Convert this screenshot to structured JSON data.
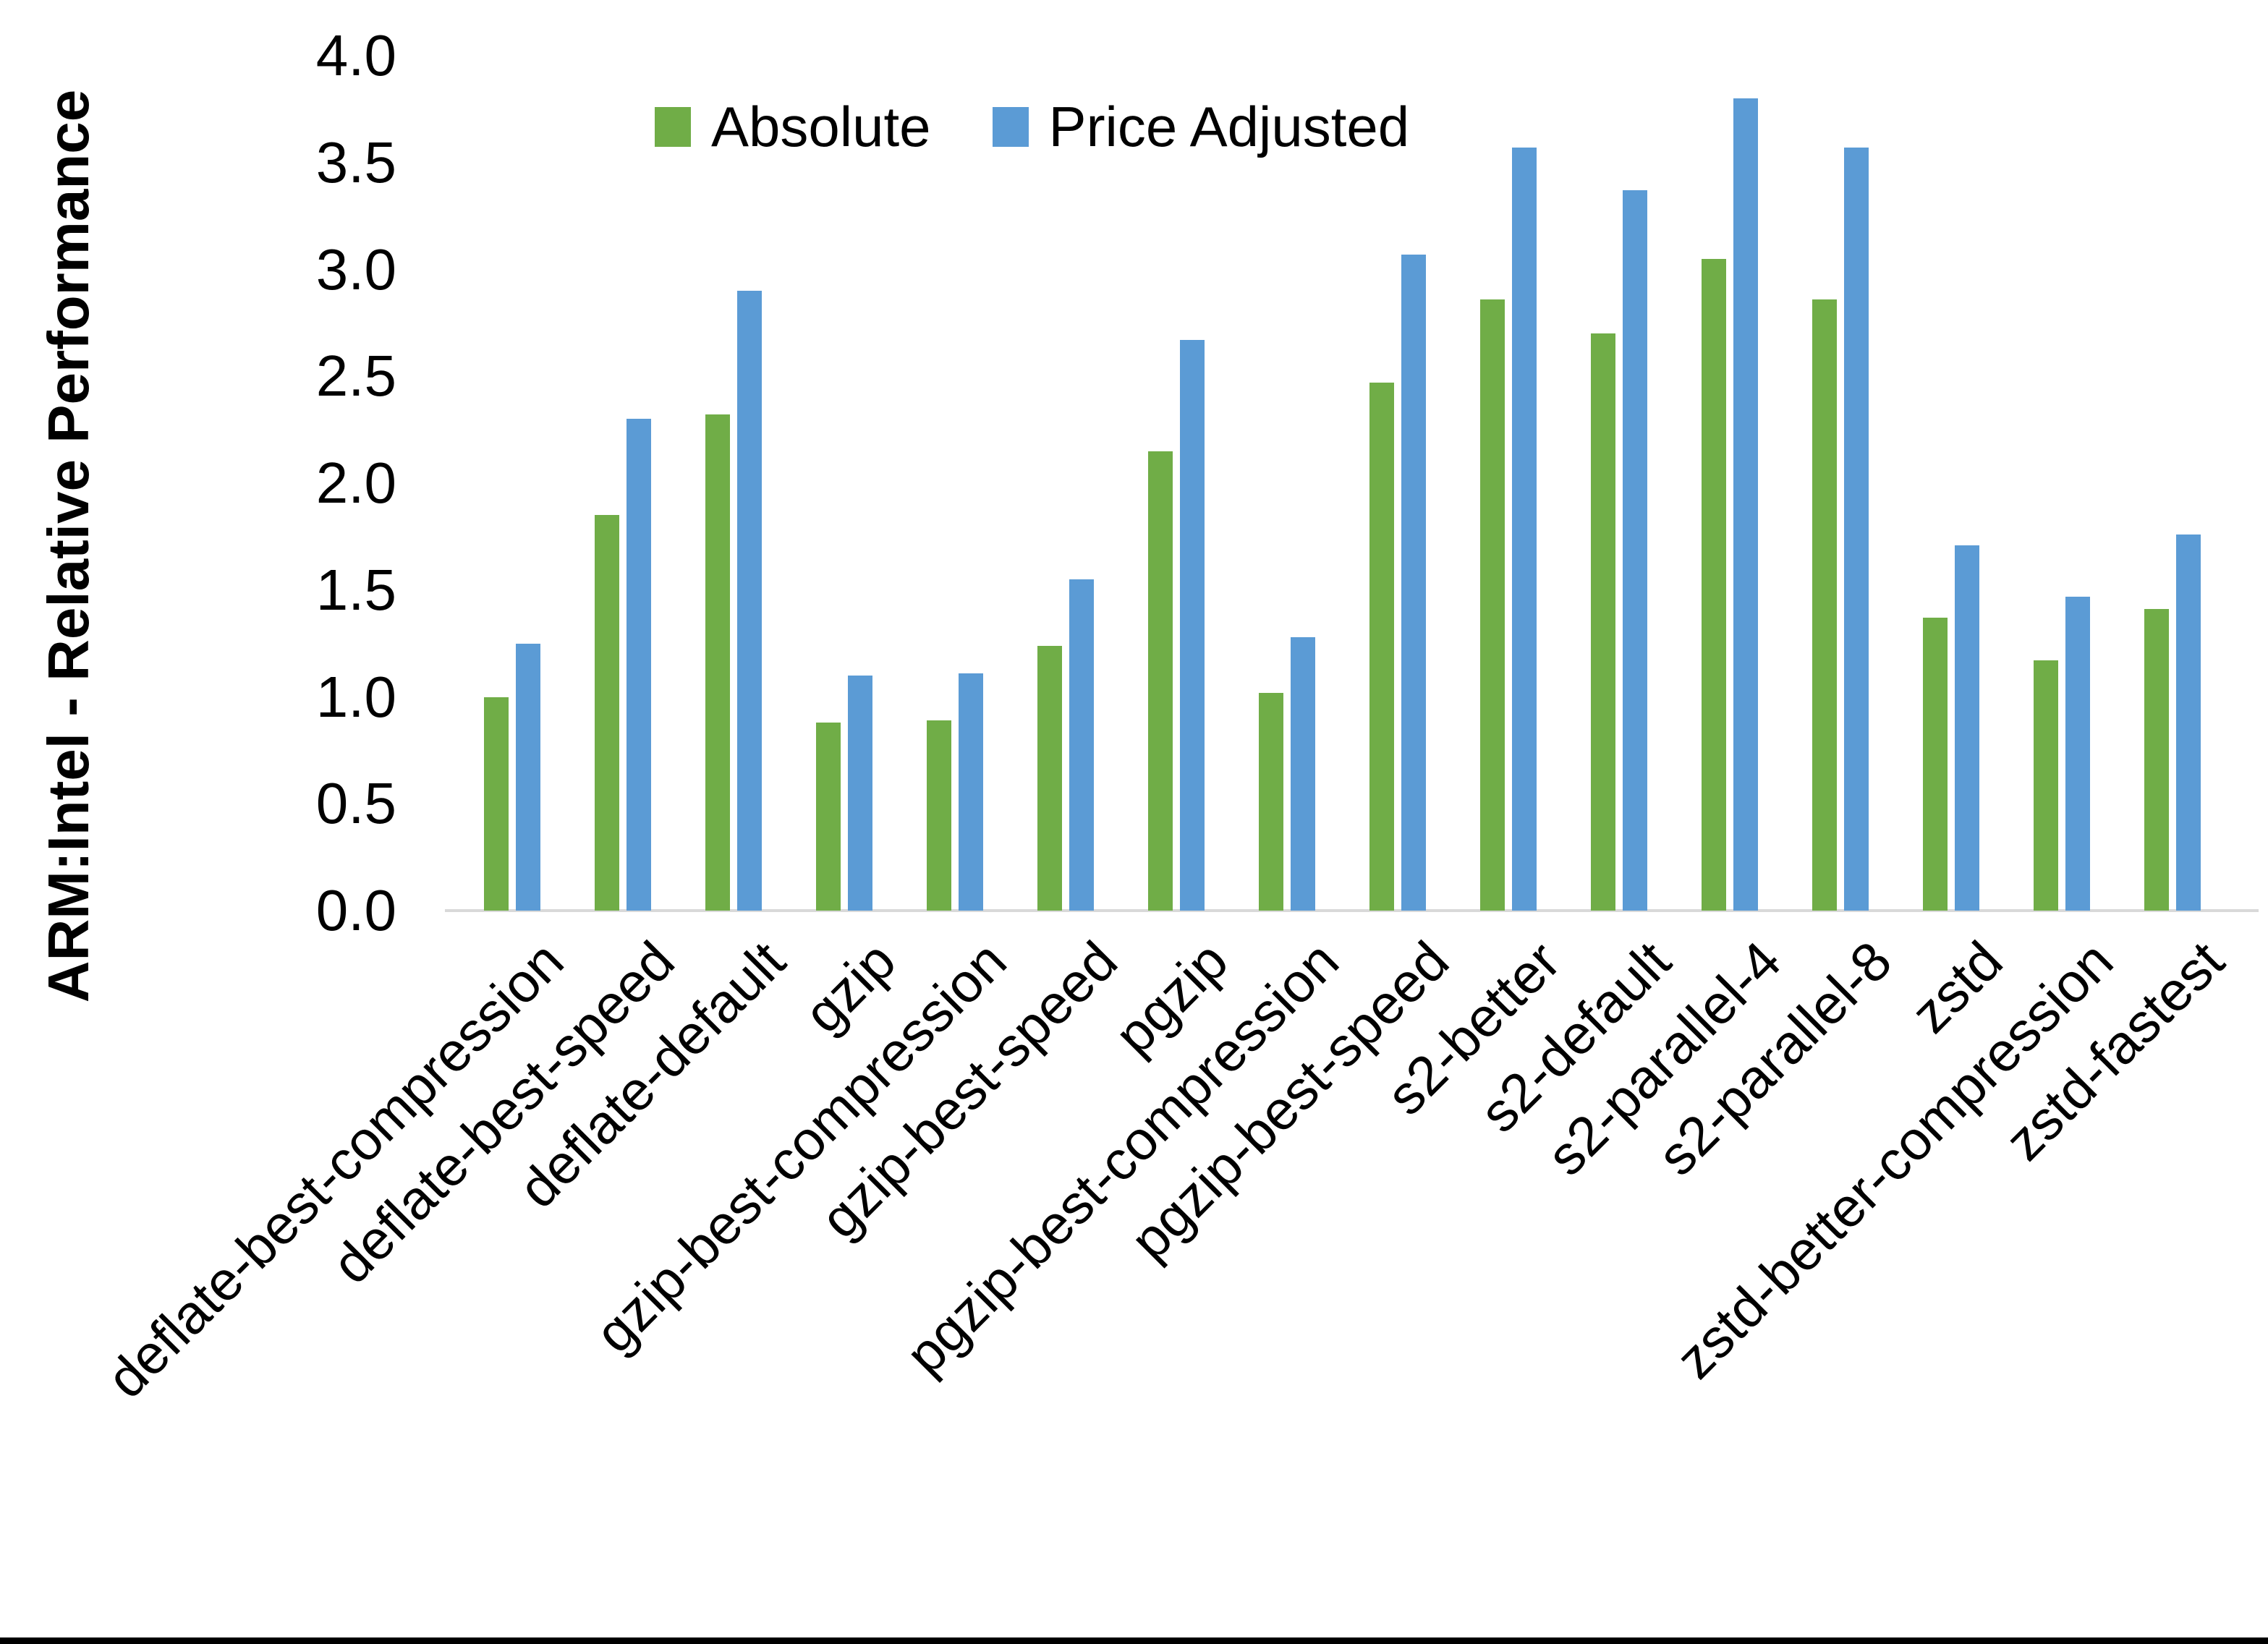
{
  "chart_data": {
    "type": "bar",
    "title": "",
    "xlabel": "",
    "ylabel": "ARM:Intel - Relative Performance",
    "ylim": [
      0.0,
      4.0
    ],
    "ytick_step": 0.5,
    "yticks": [
      "0.0",
      "0.5",
      "1.0",
      "1.5",
      "2.0",
      "2.5",
      "3.0",
      "3.5",
      "4.0"
    ],
    "grid": false,
    "legend_position": "top-center",
    "categories": [
      "deflate-best-compression",
      "deflate-best-speed",
      "deflate-default",
      "gzip",
      "gzip-best-compression",
      "gzip-best-speed",
      "pgzip",
      "pgzip-best-compression",
      "pgzip-best-speed",
      "s2-better",
      "s2-default",
      "s2-parallel-4",
      "s2-parallel-8",
      "zstd",
      "zstd-better-compression",
      "zstd-fastest"
    ],
    "series": [
      {
        "name": "Absolute",
        "color": "#70AD47",
        "values": [
          1.0,
          1.85,
          2.32,
          0.88,
          0.89,
          1.24,
          2.15,
          1.02,
          2.47,
          2.86,
          2.7,
          3.05,
          2.86,
          1.37,
          1.17,
          1.41
        ]
      },
      {
        "name": "Price Adjusted",
        "color": "#5B9BD5",
        "values": [
          1.25,
          2.3,
          2.9,
          1.1,
          1.11,
          1.55,
          2.67,
          1.28,
          3.07,
          3.57,
          3.37,
          3.8,
          3.57,
          1.71,
          1.47,
          1.76
        ]
      }
    ]
  },
  "colors": {
    "background": "#FFFFFF",
    "axis_line": "#D9D9D9",
    "text": "#000000",
    "bottom_border": "#000000"
  }
}
